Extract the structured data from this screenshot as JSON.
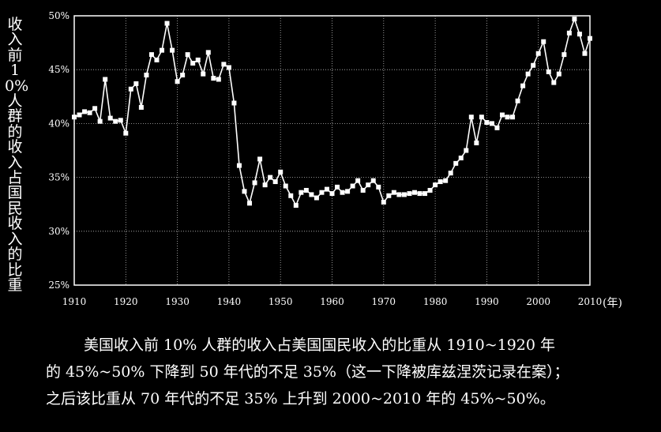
{
  "chart_data": {
    "type": "line",
    "ylabel": "收入前10%人群的收入占国民收入的比重",
    "xunit": "(年)",
    "xlim": [
      1910,
      2010
    ],
    "ylim": [
      25,
      50
    ],
    "xticks": [
      1910,
      1920,
      1930,
      1940,
      1950,
      1960,
      1970,
      1980,
      1990,
      2000,
      2010
    ],
    "yticks": [
      25,
      30,
      35,
      40,
      45,
      50
    ],
    "ytick_labels": [
      "25%",
      "30%",
      "35%",
      "40%",
      "45%",
      "50%"
    ],
    "grid": true,
    "marker": "square",
    "x": [
      1910,
      1911,
      1912,
      1913,
      1914,
      1915,
      1916,
      1917,
      1918,
      1919,
      1920,
      1921,
      1922,
      1923,
      1924,
      1925,
      1926,
      1927,
      1928,
      1929,
      1930,
      1931,
      1932,
      1933,
      1934,
      1935,
      1936,
      1937,
      1938,
      1939,
      1940,
      1941,
      1942,
      1943,
      1944,
      1945,
      1946,
      1947,
      1948,
      1949,
      1950,
      1951,
      1952,
      1953,
      1954,
      1955,
      1956,
      1957,
      1958,
      1959,
      1960,
      1961,
      1962,
      1963,
      1964,
      1965,
      1966,
      1967,
      1968,
      1969,
      1970,
      1971,
      1972,
      1973,
      1974,
      1975,
      1976,
      1977,
      1978,
      1979,
      1980,
      1981,
      1982,
      1983,
      1984,
      1985,
      1986,
      1987,
      1988,
      1989,
      1990,
      1991,
      1992,
      1993,
      1994,
      1995,
      1996,
      1997,
      1998,
      1999,
      2000,
      2001,
      2002,
      2003,
      2004,
      2005,
      2006,
      2007,
      2008,
      2009,
      2010
    ],
    "y": [
      40.6,
      40.8,
      41.1,
      41.0,
      41.4,
      40.2,
      44.1,
      40.5,
      40.2,
      40.3,
      39.1,
      43.2,
      43.7,
      41.5,
      44.5,
      46.4,
      45.9,
      46.8,
      49.3,
      46.8,
      43.9,
      44.5,
      46.4,
      45.6,
      45.9,
      44.6,
      46.6,
      44.2,
      44.1,
      45.5,
      45.2,
      41.9,
      36.1,
      33.7,
      32.6,
      34.5,
      36.7,
      34.3,
      35.0,
      34.6,
      35.5,
      34.2,
      33.3,
      32.4,
      33.6,
      33.8,
      33.4,
      33.1,
      33.6,
      33.9,
      33.5,
      34.1,
      33.6,
      33.7,
      34.2,
      34.7,
      33.8,
      34.3,
      34.7,
      34.1,
      32.7,
      33.3,
      33.6,
      33.4,
      33.4,
      33.5,
      33.6,
      33.5,
      33.5,
      33.8,
      34.3,
      34.6,
      34.7,
      35.4,
      36.3,
      36.8,
      37.5,
      40.6,
      38.2,
      40.6,
      40.1,
      40.0,
      39.6,
      40.8,
      40.6,
      40.6,
      42.1,
      43.5,
      44.6,
      45.4,
      46.5,
      47.6,
      44.8,
      43.8,
      44.6,
      46.4,
      48.4,
      49.7,
      48.3,
      46.5,
      47.9
    ]
  },
  "caption": {
    "line1": "美国收入前 10% 人群的收入占美国国民收入的比重从 1910~1920 年",
    "line2": "的 45%~50% 下降到 50 年代的不足 35%（这一下降被库兹涅茨记录在案）；",
    "line3": "之后该比重从 70 年代的不足 35% 上升到 2000~2010 年的 45%~50%。"
  }
}
